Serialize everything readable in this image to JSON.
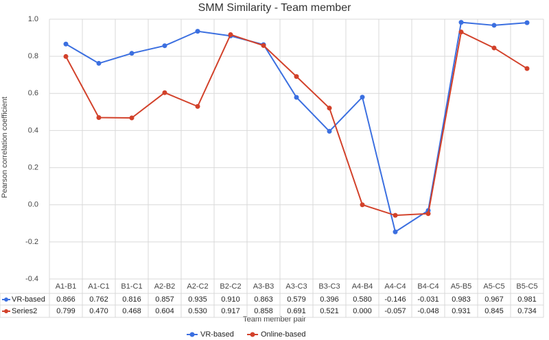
{
  "chart_data": {
    "type": "line",
    "title": "SMM Similarity - Team member",
    "y_label": "Pearson correlation coefficient",
    "x_label": "Team member pair",
    "categories": [
      "A1-B1",
      "A1-C1",
      "B1-C1",
      "A2-B2",
      "A2-C2",
      "B2-C2",
      "A3-B3",
      "A3-C3",
      "B3-C3",
      "A4-B4",
      "A4-C4",
      "B4-C4",
      "A5-B5",
      "A5-C5",
      "B5-C5"
    ],
    "series": [
      {
        "name": "VR-based",
        "table_label": "VR-based",
        "color": "#3b6fe0",
        "values": [
          0.866,
          0.762,
          0.816,
          0.857,
          0.935,
          0.91,
          0.863,
          0.579,
          0.396,
          0.58,
          -0.146,
          -0.031,
          0.983,
          0.967,
          0.981
        ],
        "value_labels": [
          "0.866",
          "0.762",
          "0.816",
          "0.857",
          "0.935",
          "0.910",
          "0.863",
          "0.579",
          "0.396",
          "0.580",
          "-0.146",
          "-0.031",
          "0.983",
          "0.967",
          "0.981"
        ]
      },
      {
        "name": "Online-based",
        "table_label": "Series2",
        "color": "#d2412a",
        "values": [
          0.799,
          0.47,
          0.468,
          0.604,
          0.53,
          0.917,
          0.858,
          0.691,
          0.521,
          0.0,
          -0.057,
          -0.048,
          0.931,
          0.845,
          0.734
        ],
        "value_labels": [
          "0.799",
          "0.470",
          "0.468",
          "0.604",
          "0.530",
          "0.917",
          "0.858",
          "0.691",
          "0.521",
          "0.000",
          "-0.057",
          "-0.048",
          "0.931",
          "0.845",
          "0.734"
        ]
      }
    ],
    "ylim": [
      -0.4,
      1.0
    ],
    "yticks": [
      {
        "value": -0.4,
        "label": "-0.4"
      },
      {
        "value": -0.2,
        "label": "-0.2"
      },
      {
        "value": 0,
        "label": "0.0"
      },
      {
        "value": 0.2,
        "label": "0.2"
      },
      {
        "value": 0.4,
        "label": "0.4"
      },
      {
        "value": 0.6,
        "label": "0.6"
      },
      {
        "value": 0.8,
        "label": "0.8"
      },
      {
        "value": 1.0,
        "label": "1.0"
      }
    ],
    "grid": true,
    "legend": "bottom"
  }
}
